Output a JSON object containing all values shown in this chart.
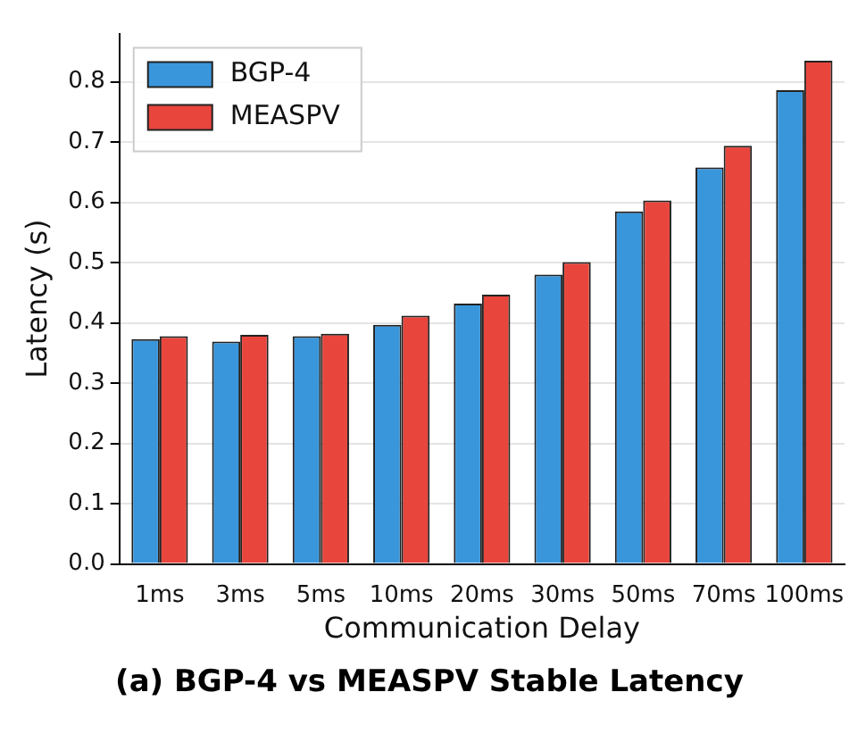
{
  "chart_data": {
    "type": "bar",
    "title": "(a) BGP-4 vs MEASPV Stable Latency",
    "xlabel": "Communication Delay",
    "ylabel": "Latency (s)",
    "categories": [
      "1ms",
      "3ms",
      "5ms",
      "10ms",
      "20ms",
      "30ms",
      "50ms",
      "70ms",
      "100ms"
    ],
    "series": [
      {
        "name": "BGP-4",
        "color": "#3a96db",
        "values": [
          0.373,
          0.369,
          0.378,
          0.397,
          0.432,
          0.48,
          0.585,
          0.658,
          0.786
        ]
      },
      {
        "name": "MEASPV",
        "color": "#e8453c",
        "values": [
          0.378,
          0.38,
          0.382,
          0.412,
          0.447,
          0.501,
          0.603,
          0.694,
          0.835
        ]
      }
    ],
    "ylim": [
      0,
      0.88
    ],
    "yticks": [
      {
        "value": 0,
        "label": "0.0"
      },
      {
        "value": 0.1,
        "label": "0.1"
      },
      {
        "value": 0.2,
        "label": "0.2"
      },
      {
        "value": 0.3,
        "label": "0.3"
      },
      {
        "value": 0.4,
        "label": "0.4"
      },
      {
        "value": 0.5,
        "label": "0.5"
      },
      {
        "value": 0.6,
        "label": "0.6"
      },
      {
        "value": 0.7,
        "label": "0.7"
      },
      {
        "value": 0.8,
        "label": "0.8"
      }
    ],
    "grid": "y",
    "legend": "top left"
  }
}
